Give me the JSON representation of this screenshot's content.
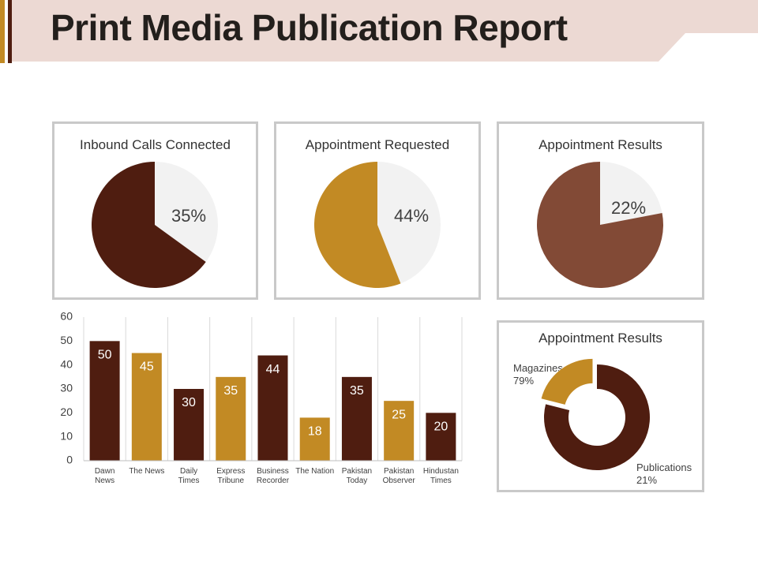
{
  "page": {
    "title": "Print Media Publication Report"
  },
  "colors": {
    "dark": "#4f1d10",
    "gold": "#c28a24",
    "brown": "#824a36",
    "light": "#f2f2f2",
    "header_band": "#ecd9d3",
    "header_accent": "#c28a24"
  },
  "chart_data": [
    {
      "type": "pie",
      "title": "Inbound Calls Connected",
      "slices": [
        {
          "label": "",
          "value": 35,
          "display": "35%",
          "color": "#f2f2f2"
        },
        {
          "label": "",
          "value": 65,
          "display": "",
          "color": "#4f1d10"
        }
      ]
    },
    {
      "type": "pie",
      "title": "Appointment Requested",
      "slices": [
        {
          "label": "",
          "value": 44,
          "display": "44%",
          "color": "#f2f2f2"
        },
        {
          "label": "",
          "value": 56,
          "display": "",
          "color": "#c28a24"
        }
      ]
    },
    {
      "type": "pie",
      "title": "Appointment Results",
      "slices": [
        {
          "label": "",
          "value": 22,
          "display": "22%",
          "color": "#f2f2f2"
        },
        {
          "label": "",
          "value": 78,
          "display": "",
          "color": "#824a36"
        }
      ]
    },
    {
      "type": "bar",
      "title": "",
      "categories": [
        [
          "Dawn",
          "News"
        ],
        [
          "The News"
        ],
        [
          "Daily",
          "Times"
        ],
        [
          "Express",
          "Tribune"
        ],
        [
          "Business",
          "Recorder"
        ],
        [
          "The Nation"
        ],
        [
          "Pakistan",
          "Today"
        ],
        [
          "Pakistan",
          "Observer"
        ],
        [
          "Hindustan",
          "Times"
        ]
      ],
      "values": [
        50,
        45,
        30,
        35,
        44,
        18,
        35,
        25,
        20
      ],
      "colors": [
        "#4f1d10",
        "#c28a24",
        "#4f1d10",
        "#c28a24",
        "#4f1d10",
        "#c28a24",
        "#4f1d10",
        "#c28a24",
        "#4f1d10"
      ],
      "yticks": [
        0,
        10,
        20,
        30,
        40,
        50,
        60
      ],
      "ylim": [
        0,
        60
      ],
      "grid": "vertical",
      "xlabel": "",
      "ylabel": ""
    },
    {
      "type": "doughnut",
      "title": "Appointment Results",
      "slices": [
        {
          "label": "Magazines",
          "value": 79,
          "display": "79%",
          "color": "#4f1d10"
        },
        {
          "label": "Publications",
          "value": 21,
          "display": "21%",
          "color": "#c28a24",
          "exploded": true
        }
      ]
    }
  ]
}
